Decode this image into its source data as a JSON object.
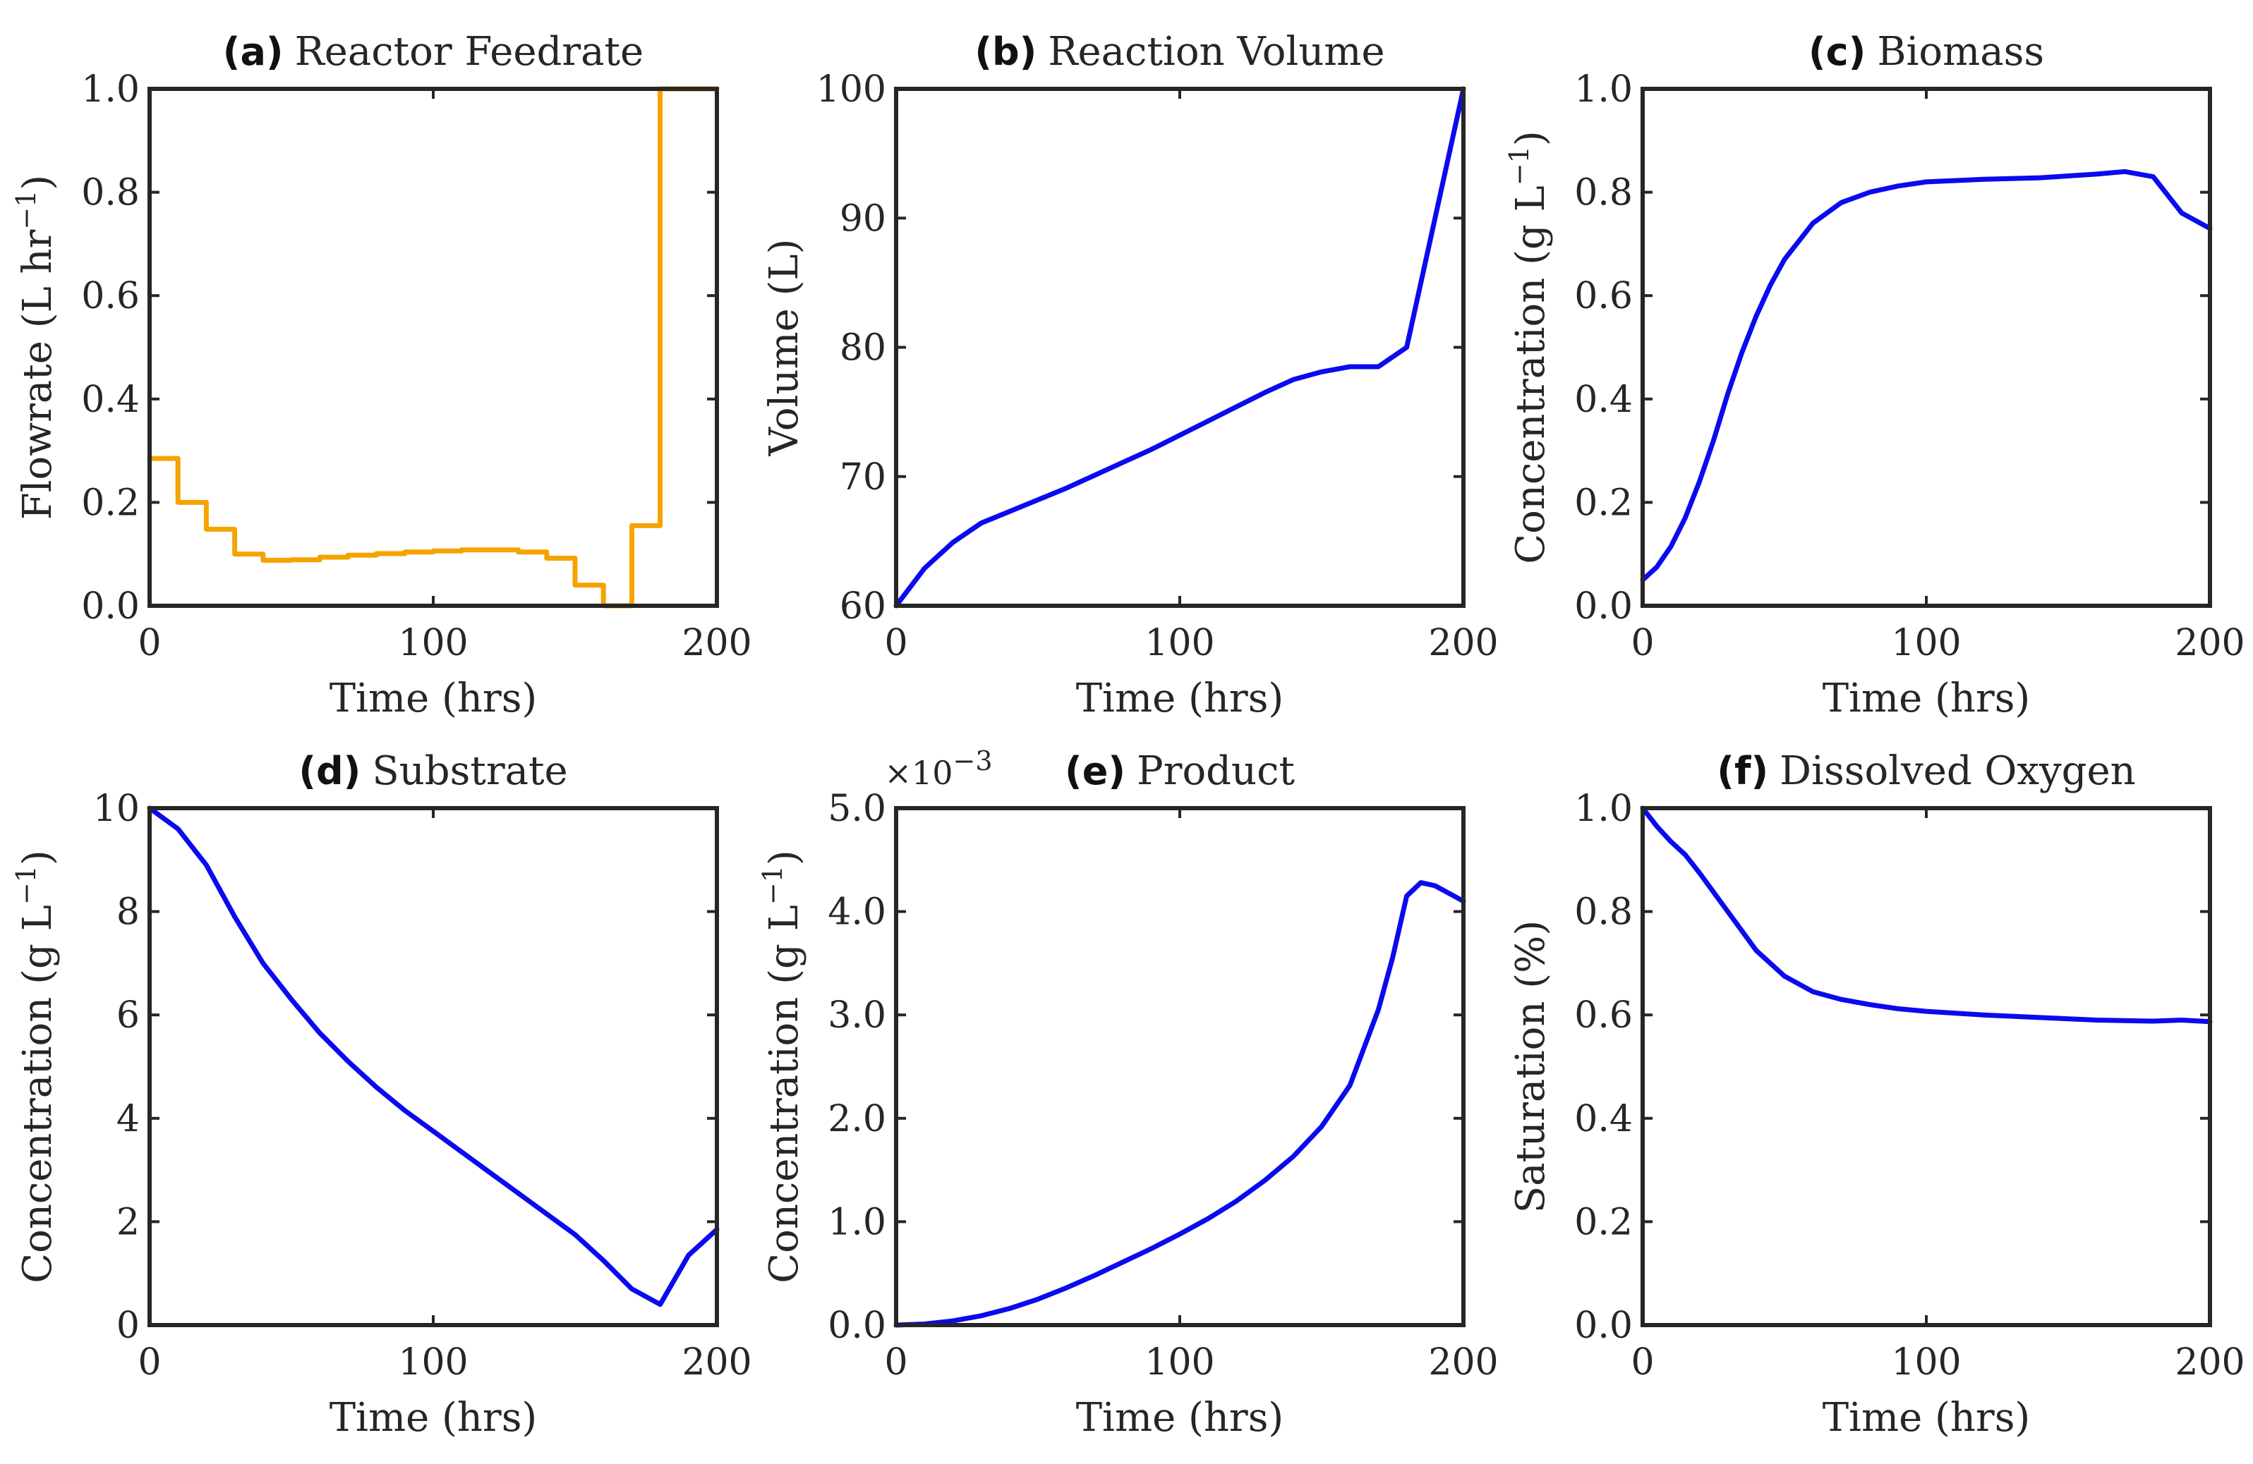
{
  "colors": {
    "blue": "#0a0af0",
    "orange": "#f5a300",
    "axis": "#262626"
  },
  "chart_data": [
    {
      "type": "line",
      "tag": "(a)",
      "title": "Reactor Feedrate",
      "xlabel": "Time (hrs)",
      "ylabel": "Flowrate (L hr",
      "ylabel_sup": "−1",
      "ylabel_close": ")",
      "xlim": [
        0,
        200
      ],
      "ylim": [
        0,
        1
      ],
      "xticks": [
        0,
        100,
        200
      ],
      "xtick_labels": [
        "0",
        "100",
        "200"
      ],
      "yticks": [
        0,
        0.2,
        0.4,
        0.6,
        0.8,
        1.0
      ],
      "ytick_labels": [
        "0.0",
        "0.2",
        "0.4",
        "0.6",
        "0.8",
        "1.0"
      ],
      "color": "#f5a300",
      "step": true,
      "series": [
        {
          "name": "Feedrate",
          "x": [
            0,
            10,
            20,
            30,
            40,
            50,
            60,
            70,
            80,
            90,
            100,
            110,
            120,
            130,
            140,
            150,
            160,
            170,
            180,
            190,
            200
          ],
          "y": [
            0.285,
            0.2,
            0.148,
            0.1,
            0.088,
            0.089,
            0.094,
            0.098,
            0.101,
            0.104,
            0.106,
            0.108,
            0.108,
            0.104,
            0.092,
            0.04,
            0.0,
            0.155,
            1.0,
            1.0,
            1.0
          ]
        }
      ]
    },
    {
      "type": "line",
      "tag": "(b)",
      "title": "Reaction Volume",
      "xlabel": "Time (hrs)",
      "ylabel": "Volume (L)",
      "xlim": [
        0,
        200
      ],
      "ylim": [
        60,
        100
      ],
      "xticks": [
        0,
        100,
        200
      ],
      "xtick_labels": [
        "0",
        "100",
        "200"
      ],
      "yticks": [
        60,
        70,
        80,
        90,
        100
      ],
      "ytick_labels": [
        "60",
        "70",
        "80",
        "90",
        "100"
      ],
      "color": "#0a0af0",
      "series": [
        {
          "name": "Volume",
          "x": [
            0,
            10,
            20,
            30,
            40,
            50,
            60,
            70,
            80,
            90,
            100,
            110,
            120,
            130,
            140,
            150,
            160,
            170,
            180,
            190,
            200
          ],
          "y": [
            60,
            62.9,
            64.9,
            66.4,
            67.3,
            68.2,
            69.1,
            70.1,
            71.1,
            72.1,
            73.2,
            74.3,
            75.4,
            76.5,
            77.5,
            78.1,
            78.5,
            78.5,
            80,
            90,
            100
          ]
        }
      ]
    },
    {
      "type": "line",
      "tag": "(c)",
      "title": "Biomass",
      "xlabel": "Time (hrs)",
      "ylabel": "Concentration (g L",
      "ylabel_sup": "−1",
      "ylabel_close": ")",
      "xlim": [
        0,
        200
      ],
      "ylim": [
        0,
        1
      ],
      "xticks": [
        0,
        100,
        200
      ],
      "xtick_labels": [
        "0",
        "100",
        "200"
      ],
      "yticks": [
        0,
        0.2,
        0.4,
        0.6,
        0.8,
        1.0
      ],
      "ytick_labels": [
        "0.0",
        "0.2",
        "0.4",
        "0.6",
        "0.8",
        "1.0"
      ],
      "color": "#0a0af0",
      "series": [
        {
          "name": "Biomass",
          "x": [
            0,
            5,
            10,
            15,
            20,
            25,
            30,
            35,
            40,
            45,
            50,
            60,
            70,
            80,
            90,
            100,
            120,
            140,
            160,
            170,
            180,
            190,
            200
          ],
          "y": [
            0.05,
            0.075,
            0.115,
            0.17,
            0.24,
            0.32,
            0.41,
            0.49,
            0.56,
            0.62,
            0.67,
            0.74,
            0.78,
            0.8,
            0.812,
            0.82,
            0.825,
            0.828,
            0.835,
            0.84,
            0.83,
            0.76,
            0.73
          ]
        }
      ]
    },
    {
      "type": "line",
      "tag": "(d)",
      "title": "Substrate",
      "xlabel": "Time (hrs)",
      "ylabel": "Concentration (g L",
      "ylabel_sup": "−1",
      "ylabel_close": ")",
      "xlim": [
        0,
        200
      ],
      "ylim": [
        0,
        10
      ],
      "xticks": [
        0,
        100,
        200
      ],
      "xtick_labels": [
        "0",
        "100",
        "200"
      ],
      "yticks": [
        0,
        2,
        4,
        6,
        8,
        10
      ],
      "ytick_labels": [
        "0",
        "2",
        "4",
        "6",
        "8",
        "10"
      ],
      "color": "#0a0af0",
      "series": [
        {
          "name": "Substrate",
          "x": [
            0,
            10,
            20,
            30,
            40,
            50,
            60,
            70,
            80,
            90,
            100,
            110,
            120,
            130,
            140,
            150,
            160,
            170,
            180,
            190,
            200
          ],
          "y": [
            10,
            9.6,
            8.9,
            7.9,
            7.0,
            6.3,
            5.65,
            5.1,
            4.6,
            4.15,
            3.75,
            3.35,
            2.95,
            2.55,
            2.15,
            1.75,
            1.25,
            0.7,
            0.4,
            1.35,
            1.85
          ]
        }
      ]
    },
    {
      "type": "line",
      "tag": "(e)",
      "title": "Product",
      "xlabel": "Time (hrs)",
      "ylabel": "Concentration (g L",
      "ylabel_sup": "−1",
      "ylabel_close": ")",
      "exponent_base": "×10",
      "exponent_power": "−3",
      "xlim": [
        0,
        200
      ],
      "ylim": [
        0,
        5
      ],
      "xticks": [
        0,
        100,
        200
      ],
      "xtick_labels": [
        "0",
        "100",
        "200"
      ],
      "yticks": [
        0,
        1,
        2,
        3,
        4,
        5
      ],
      "ytick_labels": [
        "0.0",
        "1.0",
        "2.0",
        "3.0",
        "4.0",
        "5.0"
      ],
      "color": "#0a0af0",
      "series": [
        {
          "name": "Product (×10^-3)",
          "x": [
            0,
            10,
            20,
            30,
            40,
            50,
            60,
            70,
            80,
            90,
            100,
            110,
            120,
            130,
            140,
            150,
            160,
            170,
            175,
            180,
            185,
            190,
            200
          ],
          "y": [
            0,
            0.01,
            0.04,
            0.09,
            0.16,
            0.25,
            0.36,
            0.48,
            0.61,
            0.74,
            0.88,
            1.03,
            1.2,
            1.4,
            1.63,
            1.92,
            2.32,
            3.05,
            3.55,
            4.15,
            4.28,
            4.25,
            4.1
          ]
        }
      ]
    },
    {
      "type": "line",
      "tag": "(f)",
      "title": "Dissolved Oxygen",
      "xlabel": "Time (hrs)",
      "ylabel": "Saturation (%)",
      "xlim": [
        0,
        200
      ],
      "ylim": [
        0,
        1
      ],
      "xticks": [
        0,
        100,
        200
      ],
      "xtick_labels": [
        "0",
        "100",
        "200"
      ],
      "yticks": [
        0,
        0.2,
        0.4,
        0.6,
        0.8,
        1.0
      ],
      "ytick_labels": [
        "0.0",
        "0.2",
        "0.4",
        "0.6",
        "0.8",
        "1.0"
      ],
      "color": "#0a0af0",
      "series": [
        {
          "name": "Saturation",
          "x": [
            0,
            5,
            10,
            15,
            20,
            30,
            40,
            50,
            60,
            70,
            80,
            90,
            100,
            120,
            140,
            160,
            180,
            190,
            200
          ],
          "y": [
            1.0,
            0.965,
            0.935,
            0.91,
            0.875,
            0.8,
            0.725,
            0.675,
            0.645,
            0.63,
            0.62,
            0.612,
            0.607,
            0.6,
            0.595,
            0.59,
            0.588,
            0.59,
            0.587
          ]
        }
      ]
    }
  ]
}
